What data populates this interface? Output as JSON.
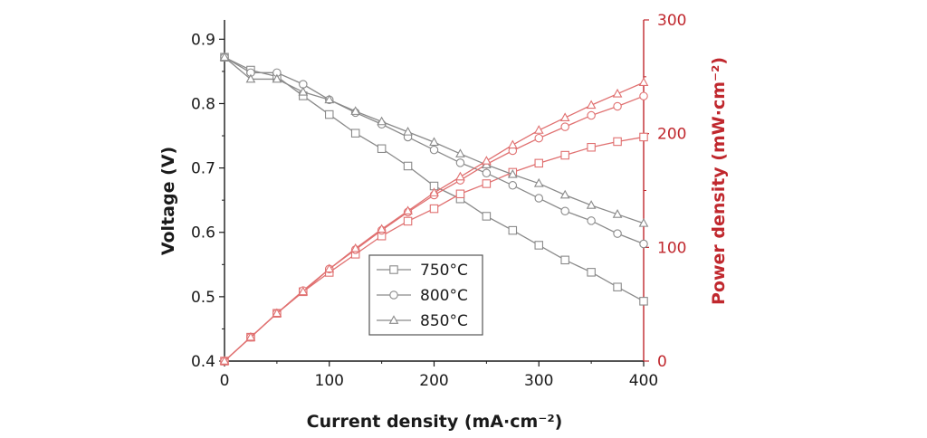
{
  "chart_data": {
    "type": "line",
    "x": [
      0,
      25,
      50,
      75,
      100,
      125,
      150,
      175,
      200,
      225,
      250,
      275,
      300,
      325,
      350,
      375,
      400
    ],
    "xlabel": "Current density (mA·cm⁻²)",
    "xlim": [
      0,
      400
    ],
    "xticks": [
      "0",
      "100",
      "200",
      "300",
      "400"
    ],
    "ylabel_left": "Voltage (V)",
    "ylim_left": [
      0.4,
      0.93
    ],
    "yticks_left": [
      "0.4",
      "0.5",
      "0.6",
      "0.7",
      "0.8",
      "0.9"
    ],
    "ylabel_right": "Power density (mW·cm⁻²)",
    "ylim_right": [
      0,
      300
    ],
    "yticks_right": [
      "0",
      "100",
      "200",
      "300"
    ],
    "legend_position": "lower-center",
    "grid": false,
    "voltage_color": "#8a8a8a",
    "power_color": "#e07070",
    "axis_right_color": "#c0282e",
    "series": [
      {
        "name": "750°C",
        "marker": "square",
        "voltage": [
          0.872,
          0.852,
          0.842,
          0.812,
          0.783,
          0.754,
          0.73,
          0.703,
          0.672,
          0.652,
          0.625,
          0.603,
          0.58,
          0.557,
          0.538,
          0.515,
          0.493
        ],
        "power": [
          0,
          21,
          42,
          61,
          78,
          94,
          110,
          123,
          134,
          147,
          156,
          166,
          174,
          181,
          188,
          193,
          197
        ]
      },
      {
        "name": "800°C",
        "marker": "circle",
        "voltage": [
          0.872,
          0.848,
          0.848,
          0.83,
          0.806,
          0.786,
          0.768,
          0.748,
          0.728,
          0.708,
          0.692,
          0.673,
          0.653,
          0.633,
          0.618,
          0.598,
          0.582
        ],
        "power": [
          0,
          21,
          42,
          62,
          81,
          98,
          115,
          131,
          146,
          159,
          173,
          185,
          196,
          206,
          216,
          224,
          233
        ]
      },
      {
        "name": "850°C",
        "marker": "triangle",
        "voltage": [
          0.872,
          0.838,
          0.838,
          0.818,
          0.806,
          0.788,
          0.772,
          0.756,
          0.74,
          0.722,
          0.705,
          0.69,
          0.676,
          0.658,
          0.642,
          0.628,
          0.614
        ],
        "power": [
          0,
          21,
          42,
          61,
          81,
          99,
          116,
          132,
          148,
          162,
          176,
          190,
          203,
          214,
          225,
          235,
          245
        ]
      }
    ]
  }
}
